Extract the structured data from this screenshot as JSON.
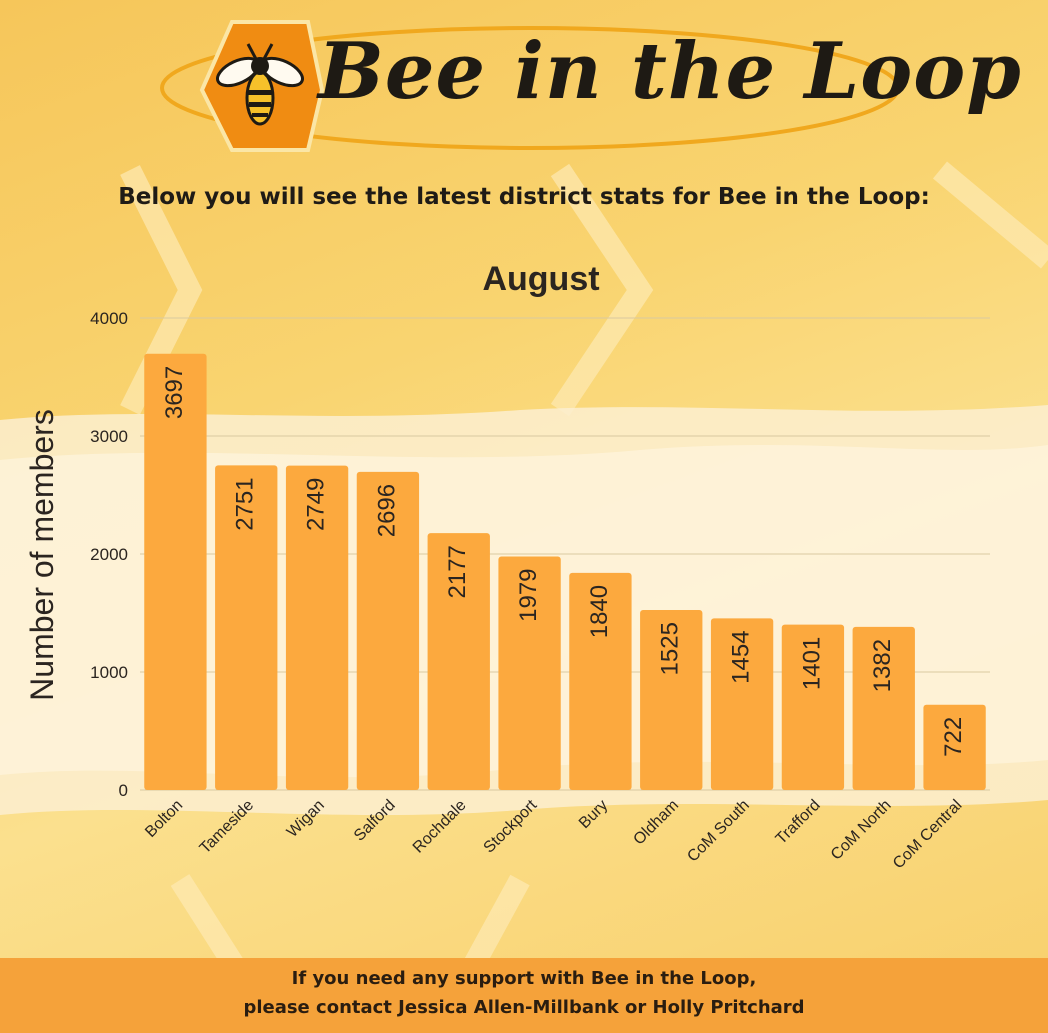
{
  "header": {
    "logo_text": "Bee in the Loop",
    "subtitle": "Below you will see the latest district stats for Bee in the Loop:"
  },
  "footer": {
    "line1": "If you need any support with Bee in the Loop,",
    "line2": "please contact Jessica Allen-Millbank or Holly Pritchard"
  },
  "colors": {
    "bar": "#fca93e",
    "footer": "#f5a23a",
    "logo_hexagon": "#f08c12"
  },
  "icons": [
    "bee-icon"
  ],
  "chart_data": {
    "type": "bar",
    "title": "August",
    "xlabel": "",
    "ylabel": "Number of members",
    "ylim": [
      0,
      4000
    ],
    "yticks": [
      0,
      1000,
      2000,
      3000,
      4000
    ],
    "grid": true,
    "legend": "none",
    "categories": [
      "Bolton",
      "Tameside",
      "Wigan",
      "Salford",
      "Rochdale",
      "Stockport",
      "Bury",
      "Oldham",
      "CoM South",
      "Trafford",
      "CoM North",
      "CoM Central"
    ],
    "values": [
      3697,
      2751,
      2749,
      2696,
      2177,
      1979,
      1840,
      1525,
      1454,
      1401,
      1382,
      722
    ]
  }
}
